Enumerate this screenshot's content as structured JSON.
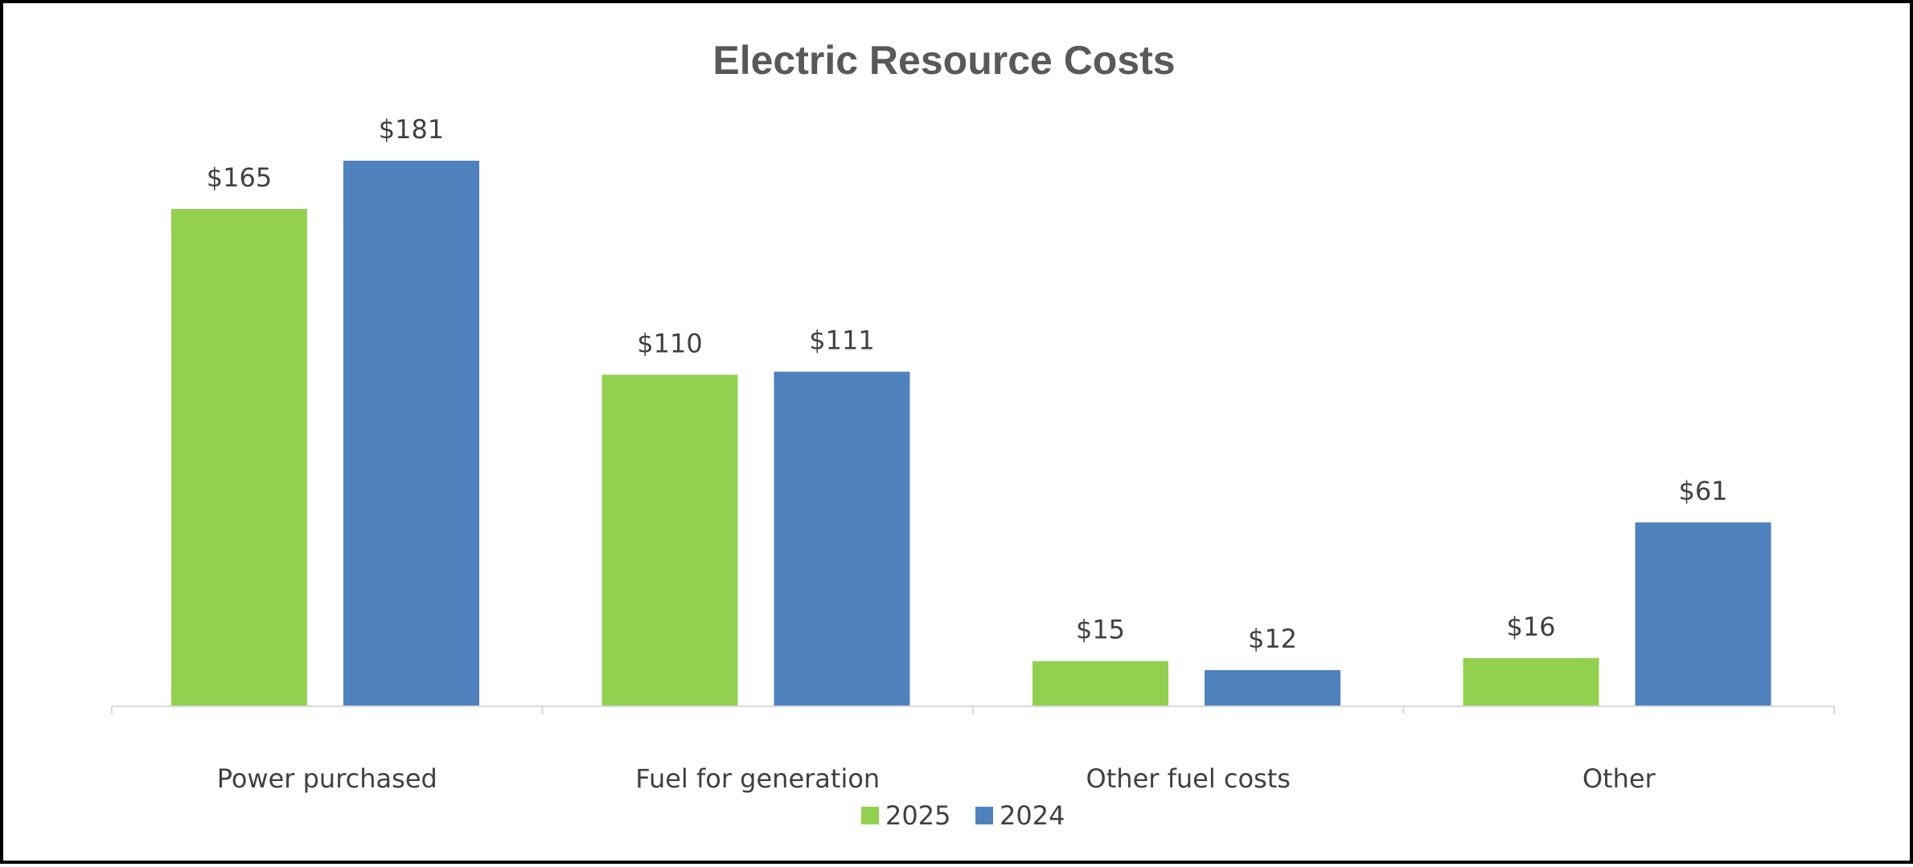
{
  "chart_data": {
    "type": "bar",
    "title": "Electric Resource Costs",
    "categories": [
      "Power purchased",
      "Fuel for generation",
      "Other fuel costs",
      "Other"
    ],
    "series": [
      {
        "name": "2025",
        "color": "#92D050",
        "values": [
          165,
          110,
          15,
          16
        ],
        "labels": [
          "$165",
          "$110",
          "$15",
          "$16"
        ]
      },
      {
        "name": "2024",
        "color": "#4F81BD",
        "values": [
          181,
          111,
          12,
          61
        ],
        "labels": [
          "$181",
          "$111",
          "$12",
          "$61"
        ]
      }
    ],
    "xlabel": "",
    "ylabel": "",
    "ylim": [
      0,
      181
    ],
    "grid": false,
    "legend": "bottom-center",
    "axis_color": "#D9D9D9",
    "border_color": "#000000"
  }
}
